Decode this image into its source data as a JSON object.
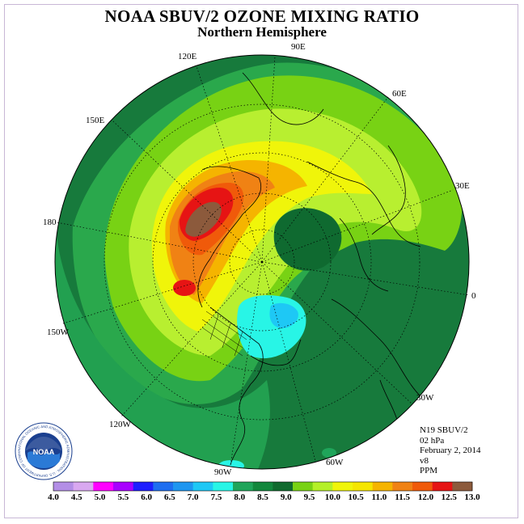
{
  "title": "NOAA SBUV/2 OZONE MIXING RATIO",
  "subtitle": "Northern Hemisphere",
  "longitude_labels": {
    "e90": "90E",
    "e120": "120E",
    "e60": "60E",
    "e150": "150E",
    "e30": "30E",
    "d180": "180",
    "zero": "0",
    "w150": "150W",
    "w30": "30W",
    "w120": "120W",
    "w60": "60W",
    "w90": "90W"
  },
  "info": {
    "satellite": "N19 SBUV/2",
    "level": "02 hPa",
    "date": "February 2, 2014",
    "version": "v8",
    "units": "PPM"
  },
  "logo": {
    "text": "NOAA",
    "ring_text": "NATIONAL OCEANIC AND ATMOSPHERIC ADMINISTRATION · U.S. DEPARTMENT OF COMMERCE"
  },
  "colorbar": {
    "labels": [
      "4.0",
      "4.5",
      "5.0",
      "5.5",
      "6.0",
      "6.5",
      "7.0",
      "7.5",
      "8.0",
      "8.5",
      "9.0",
      "9.5",
      "10.0",
      "10.5",
      "11.0",
      "11.5",
      "12.0",
      "12.5",
      "13.0"
    ],
    "colors": [
      "#b38ee6",
      "#d9a8f0",
      "#ff00ff",
      "#a800ff",
      "#1e1eff",
      "#1e6ef0",
      "#1e96f0",
      "#1ec8f5",
      "#28f5e6",
      "#1fa55a",
      "#12873c",
      "#106a2e",
      "#78d214",
      "#b4f028",
      "#f0f50a",
      "#f5e600",
      "#f5b400",
      "#f08214",
      "#f05a0a",
      "#e61414",
      "#8c5a3c"
    ],
    "color_notes": "21 swatches shown between the 4.0 and 13.0 labels"
  },
  "map_colors": {
    "background": "#177a3c",
    "level_8_5": "#1fa55a",
    "level_9_0": "#2bb84a",
    "level_9_5": "#78d214",
    "level_10_0": "#b8ef30",
    "level_10_5": "#f0f50a",
    "level_11_0": "#f5c800",
    "level_11_5": "#f59a14",
    "level_12_0": "#f05a0a",
    "level_12_5": "#e61414",
    "level_13_0": "#8c5a3c",
    "low_cyan": "#28f5e6",
    "low_blue": "#1ec8f5"
  }
}
